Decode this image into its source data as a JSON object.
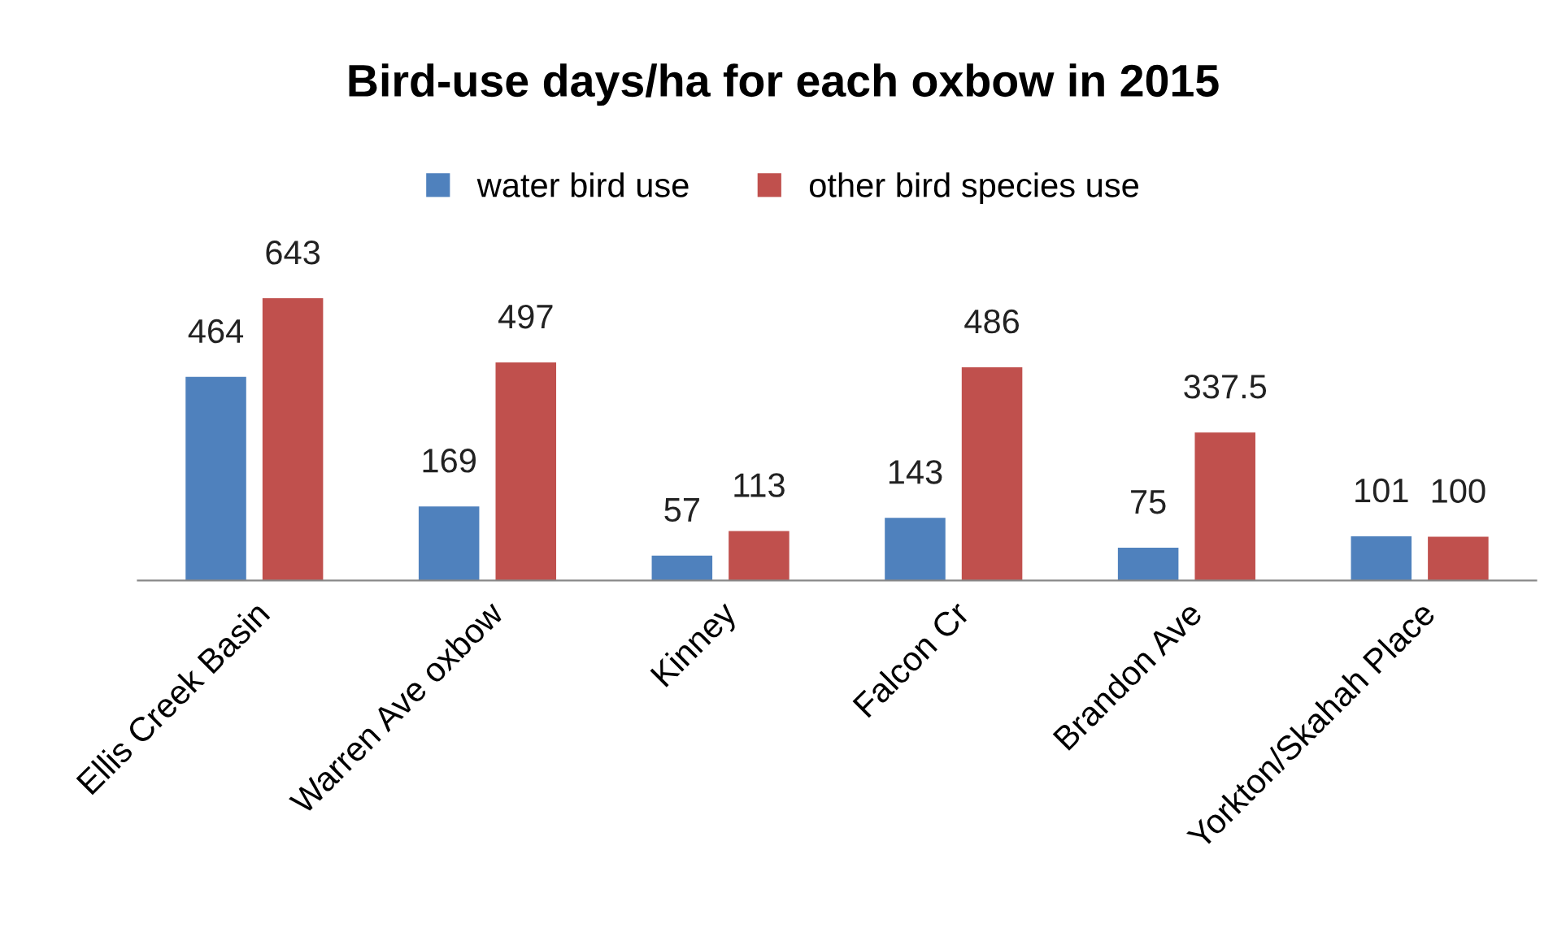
{
  "chart_data": {
    "type": "bar",
    "title": "Bird-use days/ha for each oxbow in 2015",
    "categories": [
      "Ellis Creek Basin",
      "Warren Ave oxbow",
      "Kinney",
      "Falcon Cr",
      "Brandon Ave",
      "Yorkton/Skahah Place"
    ],
    "series": [
      {
        "name": "water bird use",
        "color": "#4f81bd",
        "values": [
          464,
          169,
          57,
          143,
          75,
          101
        ]
      },
      {
        "name": "other bird species use",
        "color": "#c0504d",
        "values": [
          643,
          497,
          113,
          486,
          337.5,
          100
        ]
      }
    ],
    "data_labels": true,
    "legend": "top",
    "grid": false
  }
}
